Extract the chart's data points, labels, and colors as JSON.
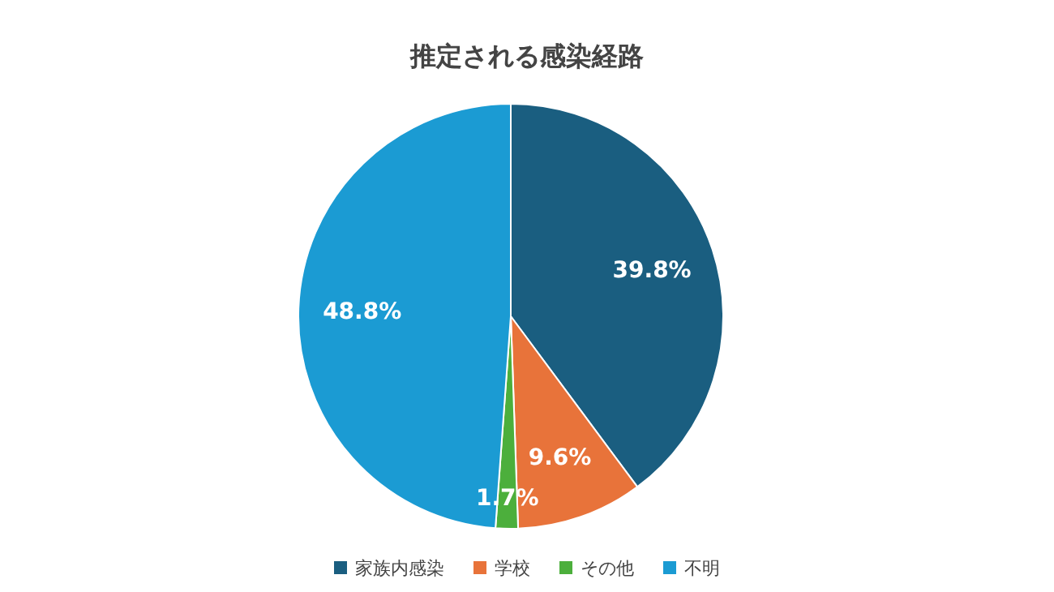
{
  "chart_data": {
    "type": "pie",
    "title": "推定される感染経路",
    "categories": [
      "家族内感染",
      "学校",
      "その他",
      "不明"
    ],
    "values": [
      39.8,
      9.6,
      1.7,
      48.8
    ],
    "value_labels": [
      "39.8%",
      "9.6%",
      "1.7%",
      "48.8%"
    ],
    "colors": [
      "#1a5e80",
      "#e8733a",
      "#4caf3c",
      "#1b9bd3"
    ],
    "legend": "bottom"
  }
}
